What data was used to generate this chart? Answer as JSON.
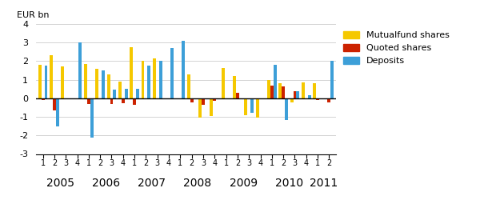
{
  "quarters": [
    "1",
    "2",
    "3",
    "4",
    "1",
    "2",
    "3",
    "4",
    "1",
    "2",
    "3",
    "4",
    "1",
    "2",
    "3",
    "4",
    "1",
    "2",
    "3",
    "4",
    "1",
    "2",
    "3",
    "4",
    "1",
    "2"
  ],
  "year_tick_positions": [
    1.5,
    5.5,
    9.5,
    13.5,
    17.5,
    21.5,
    24.5
  ],
  "year_labels": [
    "2005",
    "2006",
    "2007",
    "2008",
    "2009",
    "2010",
    "2011"
  ],
  "deposits": [
    1.75,
    -1.5,
    0.0,
    3.0,
    -2.1,
    1.5,
    0.45,
    0.5,
    0.5,
    1.75,
    2.0,
    2.7,
    3.1,
    0.0,
    0.0,
    0.0,
    0.0,
    0.0,
    -0.8,
    0.0,
    1.8,
    -1.15,
    0.4,
    0.15,
    0.0,
    2.0
  ],
  "quoted_shares": [
    -0.1,
    -0.65,
    0.0,
    0.0,
    -0.3,
    0.0,
    -0.3,
    -0.25,
    -0.35,
    0.0,
    0.0,
    0.0,
    0.0,
    -0.2,
    -0.35,
    -0.15,
    0.0,
    0.3,
    0.0,
    0.0,
    0.7,
    0.65,
    0.4,
    0.0,
    -0.1,
    -0.2
  ],
  "mutual_fund": [
    1.8,
    2.3,
    1.7,
    0.0,
    1.85,
    1.6,
    1.3,
    0.9,
    2.75,
    2.0,
    2.15,
    0.0,
    0.0,
    1.3,
    -1.05,
    -0.95,
    1.65,
    1.2,
    -0.9,
    -1.05,
    1.0,
    0.8,
    -0.2,
    0.85,
    0.8,
    0.0
  ],
  "color_deposits": "#3d9fd8",
  "color_quoted": "#cc2200",
  "color_mutual": "#f5c800",
  "ylabel": "EUR bn",
  "ylim": [
    -3,
    4
  ],
  "yticks": [
    -3,
    -2,
    -1,
    0,
    1,
    2,
    3,
    4
  ],
  "bar_width": 0.27
}
